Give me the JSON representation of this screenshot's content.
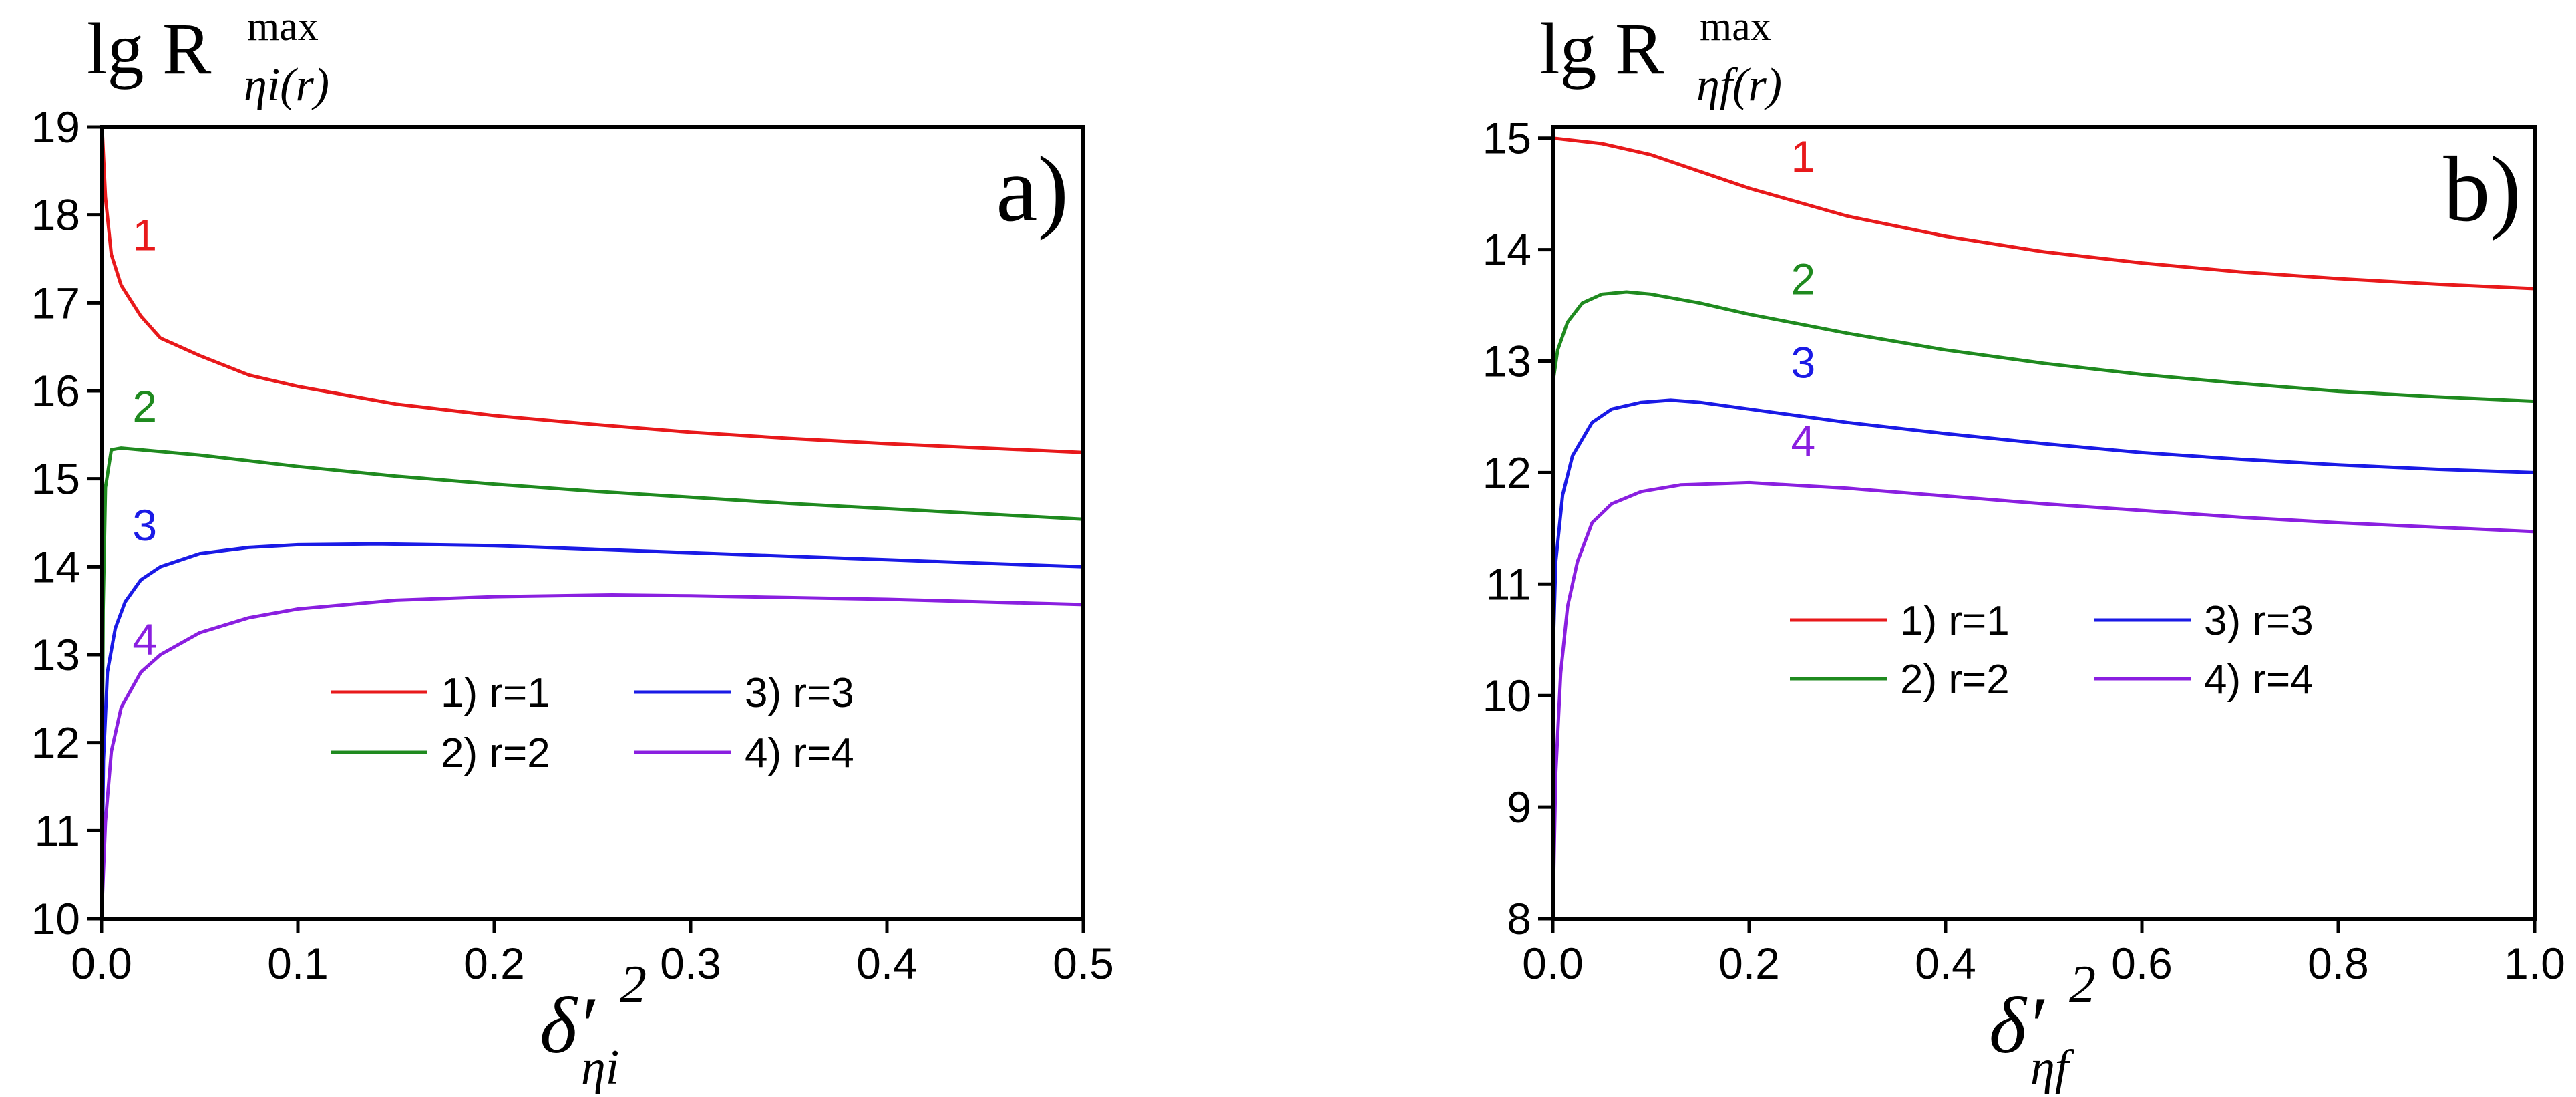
{
  "chart_data": [
    {
      "type": "line",
      "panel_label": "a)",
      "ylabel": {
        "base": "lg R",
        "sup": "max",
        "sub": "ηi(r)"
      },
      "xlabel": {
        "base": "δ′",
        "sup": "2",
        "sub": "ηi"
      },
      "xlim": [
        0,
        0.5
      ],
      "ylim": [
        10,
        19
      ],
      "x_ticks": [
        0.0,
        0.1,
        0.2,
        0.3,
        0.4,
        0.5
      ],
      "x_tick_labels": [
        "0.0",
        "0.1",
        "0.2",
        "0.3",
        "0.4",
        "0.5"
      ],
      "y_ticks": [
        10,
        11,
        12,
        13,
        14,
        15,
        16,
        17,
        18,
        19
      ],
      "y_tick_labels": [
        "10",
        "11",
        "12",
        "13",
        "14",
        "15",
        "16",
        "17",
        "18",
        "19"
      ],
      "legend": {
        "placement": "lower-right",
        "columns": 2
      },
      "series": [
        {
          "name": "1) r=1",
          "label": "1",
          "color": "#e8191b",
          "label_at": [
            0.022,
            17.6
          ],
          "x": [
            0.0005,
            0.002,
            0.005,
            0.01,
            0.02,
            0.03,
            0.05,
            0.075,
            0.1,
            0.15,
            0.2,
            0.25,
            0.3,
            0.35,
            0.4,
            0.45,
            0.5
          ],
          "y": [
            18.9,
            18.2,
            17.55,
            17.2,
            16.85,
            16.6,
            16.4,
            16.18,
            16.05,
            15.85,
            15.72,
            15.62,
            15.53,
            15.46,
            15.4,
            15.35,
            15.3
          ]
        },
        {
          "name": "2) r=2",
          "label": "2",
          "color": "#1f8a1f",
          "label_at": [
            0.022,
            15.65
          ],
          "x": [
            0.0,
            0.0008,
            0.002,
            0.005,
            0.01,
            0.05,
            0.1,
            0.15,
            0.2,
            0.25,
            0.3,
            0.35,
            0.4,
            0.45,
            0.5
          ],
          "y": [
            10.0,
            13.5,
            14.9,
            15.33,
            15.35,
            15.27,
            15.14,
            15.03,
            14.94,
            14.86,
            14.79,
            14.72,
            14.66,
            14.6,
            14.54
          ]
        },
        {
          "name": "3) r=3",
          "label": "3",
          "color": "#1a1ae6",
          "label_at": [
            0.022,
            14.3
          ],
          "x": [
            0.0,
            0.001,
            0.003,
            0.007,
            0.012,
            0.02,
            0.03,
            0.05,
            0.075,
            0.1,
            0.14,
            0.2,
            0.25,
            0.3,
            0.35,
            0.4,
            0.45,
            0.5
          ],
          "y": [
            10.0,
            11.8,
            12.8,
            13.3,
            13.6,
            13.85,
            14.0,
            14.15,
            14.22,
            14.25,
            14.26,
            14.24,
            14.2,
            14.16,
            14.12,
            14.08,
            14.04,
            14.0
          ]
        },
        {
          "name": "4) r=4",
          "label": "4",
          "color": "#8a1fe0",
          "label_at": [
            0.022,
            13.0
          ],
          "x": [
            0.0,
            0.002,
            0.005,
            0.01,
            0.02,
            0.03,
            0.05,
            0.075,
            0.1,
            0.15,
            0.2,
            0.26,
            0.3,
            0.35,
            0.4,
            0.45,
            0.5
          ],
          "y": [
            10.0,
            11.1,
            11.9,
            12.4,
            12.8,
            13.0,
            13.25,
            13.42,
            13.52,
            13.62,
            13.66,
            13.68,
            13.67,
            13.65,
            13.63,
            13.6,
            13.57
          ]
        }
      ]
    },
    {
      "type": "line",
      "panel_label": "b)",
      "ylabel": {
        "base": "lg R",
        "sup": "max",
        "sub": "ηf(r)"
      },
      "xlabel": {
        "base": "δ′",
        "sup": "2",
        "sub": "ηf"
      },
      "xlim": [
        0,
        1.0
      ],
      "ylim": [
        8,
        15.1
      ],
      "x_ticks": [
        0.0,
        0.2,
        0.4,
        0.6,
        0.8,
        1.0
      ],
      "x_tick_labels": [
        "0.0",
        "0.2",
        "0.4",
        "0.6",
        "0.8",
        "1.0"
      ],
      "y_ticks": [
        8,
        9,
        10,
        11,
        12,
        13,
        14,
        15
      ],
      "y_tick_labels": [
        "8",
        "9",
        "10",
        "11",
        "12",
        "13",
        "14",
        "15"
      ],
      "legend": {
        "placement": "center-right",
        "columns": 2
      },
      "series": [
        {
          "name": "1) r=1",
          "label": "1",
          "color": "#e8191b",
          "label_at": [
            0.255,
            14.7
          ],
          "x": [
            0.0,
            0.05,
            0.1,
            0.15,
            0.2,
            0.3,
            0.4,
            0.5,
            0.6,
            0.7,
            0.8,
            0.9,
            1.0
          ],
          "y": [
            15.0,
            14.95,
            14.85,
            14.7,
            14.55,
            14.3,
            14.12,
            13.98,
            13.88,
            13.8,
            13.74,
            13.69,
            13.65
          ]
        },
        {
          "name": "2) r=2",
          "label": "2",
          "color": "#1f8a1f",
          "label_at": [
            0.255,
            13.6
          ],
          "x": [
            0.0,
            0.005,
            0.015,
            0.03,
            0.05,
            0.075,
            0.1,
            0.15,
            0.2,
            0.3,
            0.4,
            0.5,
            0.6,
            0.7,
            0.8,
            0.9,
            1.0
          ],
          "y": [
            12.8,
            13.1,
            13.35,
            13.52,
            13.6,
            13.62,
            13.6,
            13.52,
            13.42,
            13.25,
            13.1,
            12.98,
            12.88,
            12.8,
            12.73,
            12.68,
            12.64
          ]
        },
        {
          "name": "3) r=3",
          "label": "3",
          "color": "#1a1ae6",
          "label_at": [
            0.255,
            12.85
          ],
          "x": [
            0.0,
            0.003,
            0.01,
            0.02,
            0.04,
            0.06,
            0.09,
            0.12,
            0.15,
            0.2,
            0.3,
            0.4,
            0.5,
            0.6,
            0.7,
            0.8,
            0.9,
            1.0
          ],
          "y": [
            10.3,
            11.2,
            11.8,
            12.15,
            12.45,
            12.57,
            12.63,
            12.65,
            12.63,
            12.57,
            12.45,
            12.35,
            12.26,
            12.18,
            12.12,
            12.07,
            12.03,
            12.0
          ]
        },
        {
          "name": "4) r=4",
          "label": "4",
          "color": "#8a1fe0",
          "label_at": [
            0.255,
            12.15
          ],
          "x": [
            0.0,
            0.003,
            0.008,
            0.015,
            0.025,
            0.04,
            0.06,
            0.09,
            0.13,
            0.2,
            0.3,
            0.4,
            0.5,
            0.6,
            0.7,
            0.8,
            0.9,
            1.0
          ],
          "y": [
            8.0,
            9.3,
            10.2,
            10.8,
            11.2,
            11.55,
            11.72,
            11.83,
            11.89,
            11.91,
            11.86,
            11.79,
            11.72,
            11.66,
            11.6,
            11.55,
            11.51,
            11.47
          ]
        }
      ]
    }
  ]
}
